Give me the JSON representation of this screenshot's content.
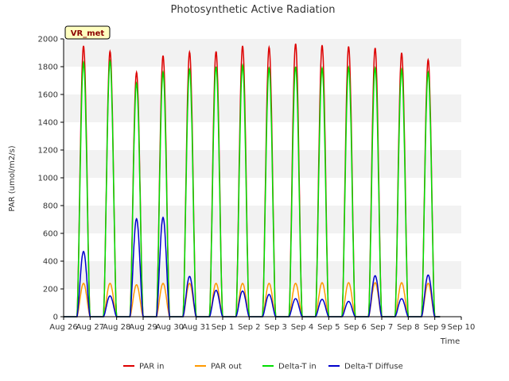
{
  "chart_data": {
    "type": "line",
    "title": "Photosynthetic Active Radiation",
    "xlabel": "Time",
    "ylabel": "PAR (umol/m2/s)",
    "ylim": [
      0,
      2000
    ],
    "yticks": [
      0,
      200,
      400,
      600,
      800,
      1000,
      1200,
      1400,
      1600,
      1800,
      2000
    ],
    "xlim": [
      0,
      15
    ],
    "xticks": [
      {
        "value": 0,
        "label": "Aug 26"
      },
      {
        "value": 1,
        "label": "Aug 27"
      },
      {
        "value": 2,
        "label": "Aug 28"
      },
      {
        "value": 3,
        "label": "Aug 29"
      },
      {
        "value": 4,
        "label": "Aug 30"
      },
      {
        "value": 5,
        "label": "Aug 31"
      },
      {
        "value": 6,
        "label": "Sep 1"
      },
      {
        "value": 7,
        "label": "Sep 2"
      },
      {
        "value": 8,
        "label": "Sep 3"
      },
      {
        "value": 9,
        "label": "Sep 4"
      },
      {
        "value": 10,
        "label": "Sep 5"
      },
      {
        "value": 11,
        "label": "Sep 6"
      },
      {
        "value": 12,
        "label": "Sep 7"
      },
      {
        "value": 13,
        "label": "Sep 8"
      },
      {
        "value": 14,
        "label": "Sep 9"
      },
      {
        "value": 15,
        "label": "Sep 10"
      }
    ],
    "x_unit": "days since Aug 26 00:00",
    "grid": "horizontal bands",
    "annotation": "VR_met",
    "legend_position": "bottom",
    "series": [
      {
        "name": "PAR in",
        "color": "#dd0000",
        "daily_peaks": [
          {
            "center": 0.75,
            "peak": 1950
          },
          {
            "center": 1.75,
            "peak": 1910
          },
          {
            "center": 2.75,
            "peak": 1760
          },
          {
            "center": 3.75,
            "peak": 1880
          },
          {
            "center": 4.75,
            "peak": 1905
          },
          {
            "center": 5.75,
            "peak": 1910
          },
          {
            "center": 6.75,
            "peak": 1950
          },
          {
            "center": 7.75,
            "peak": 1940
          },
          {
            "center": 8.75,
            "peak": 1965
          },
          {
            "center": 9.75,
            "peak": 1955
          },
          {
            "center": 10.75,
            "peak": 1945
          },
          {
            "center": 11.75,
            "peak": 1935
          },
          {
            "center": 12.75,
            "peak": 1900
          },
          {
            "center": 13.75,
            "peak": 1850
          }
        ]
      },
      {
        "name": "PAR out",
        "color": "#ff9900",
        "daily_peaks": [
          {
            "center": 0.75,
            "peak": 240
          },
          {
            "center": 1.75,
            "peak": 240
          },
          {
            "center": 2.75,
            "peak": 230
          },
          {
            "center": 3.75,
            "peak": 240
          },
          {
            "center": 4.75,
            "peak": 240
          },
          {
            "center": 5.75,
            "peak": 240
          },
          {
            "center": 6.75,
            "peak": 240
          },
          {
            "center": 7.75,
            "peak": 240
          },
          {
            "center": 8.75,
            "peak": 240
          },
          {
            "center": 9.75,
            "peak": 245
          },
          {
            "center": 10.75,
            "peak": 245
          },
          {
            "center": 11.75,
            "peak": 245
          },
          {
            "center": 12.75,
            "peak": 245
          },
          {
            "center": 13.75,
            "peak": 240
          }
        ]
      },
      {
        "name": "Delta-T in",
        "color": "#00dd00",
        "daily_peaks": [
          {
            "center": 0.75,
            "peak": 1830
          },
          {
            "center": 1.75,
            "peak": 1840
          },
          {
            "center": 2.75,
            "peak": 1680
          },
          {
            "center": 3.75,
            "peak": 1760
          },
          {
            "center": 4.75,
            "peak": 1780
          },
          {
            "center": 5.75,
            "peak": 1800
          },
          {
            "center": 6.75,
            "peak": 1810
          },
          {
            "center": 7.75,
            "peak": 1790
          },
          {
            "center": 8.75,
            "peak": 1800
          },
          {
            "center": 9.75,
            "peak": 1790
          },
          {
            "center": 10.75,
            "peak": 1795
          },
          {
            "center": 11.75,
            "peak": 1790
          },
          {
            "center": 12.75,
            "peak": 1780
          },
          {
            "center": 13.75,
            "peak": 1760
          }
        ]
      },
      {
        "name": "Delta-T Diffuse",
        "color": "#0000cc",
        "daily_peaks": [
          {
            "center": 0.75,
            "peak": 470
          },
          {
            "center": 1.75,
            "peak": 150
          },
          {
            "center": 2.75,
            "peak": 705
          },
          {
            "center": 3.75,
            "peak": 715
          },
          {
            "center": 4.75,
            "peak": 290
          },
          {
            "center": 5.75,
            "peak": 190
          },
          {
            "center": 6.75,
            "peak": 185
          },
          {
            "center": 7.75,
            "peak": 160
          },
          {
            "center": 8.75,
            "peak": 130
          },
          {
            "center": 9.75,
            "peak": 125
          },
          {
            "center": 10.75,
            "peak": 110
          },
          {
            "center": 11.75,
            "peak": 295
          },
          {
            "center": 12.75,
            "peak": 130
          },
          {
            "center": 13.75,
            "peak": 300
          }
        ]
      }
    ]
  }
}
